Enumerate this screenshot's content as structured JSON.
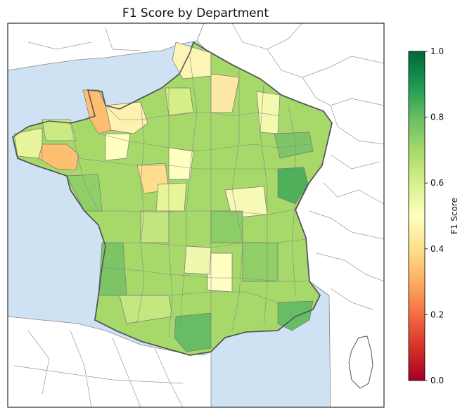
{
  "title": "F1 Score by Department",
  "colorbar": {
    "label": "F1 Score",
    "ticks": [
      "0.0",
      "0.2",
      "0.4",
      "0.6",
      "0.8",
      "1.0"
    ],
    "range": [
      0,
      1
    ],
    "colormap": "RdYlGn",
    "stops": [
      "#a50026",
      "#f46d43",
      "#fee08b",
      "#ffffbf",
      "#d9ef8b",
      "#66bd63",
      "#006837"
    ]
  },
  "map": {
    "ocean_color": "#cfe2f3",
    "land_color": "#ffffff",
    "border_color": "#555555"
  }
}
